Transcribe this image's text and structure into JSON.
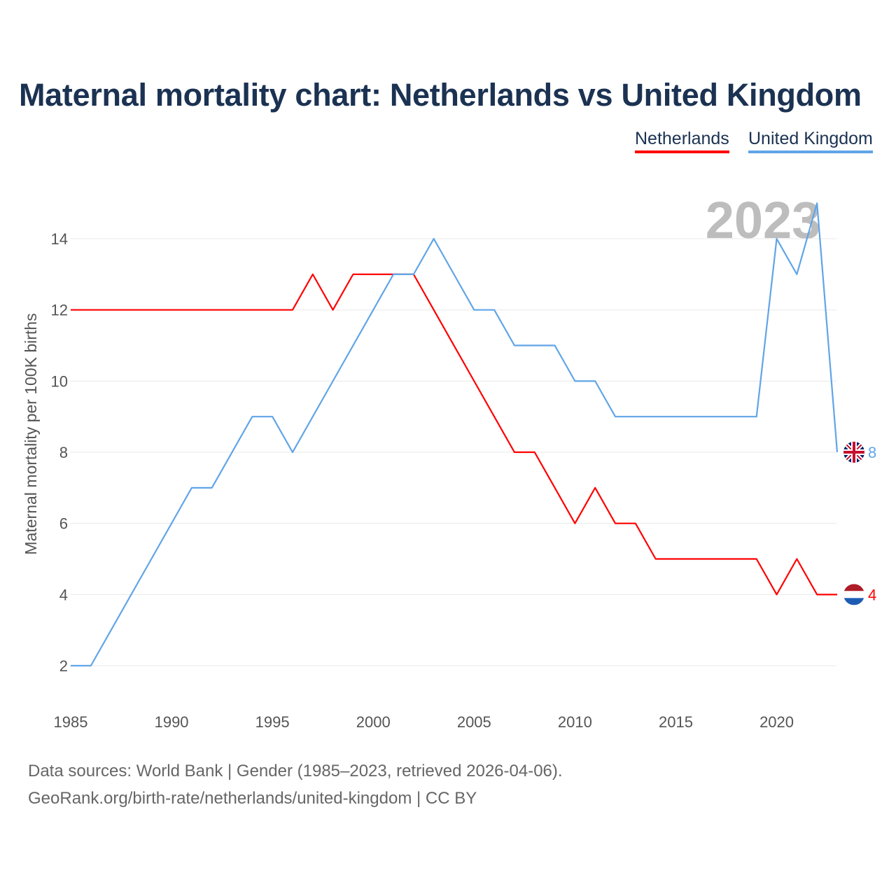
{
  "chart_data": {
    "type": "line",
    "title": "Maternal mortality chart: Netherlands vs United Kingdom",
    "ylabel": "Maternal mortality per 100K births",
    "xlabel": "",
    "xlim": [
      1985,
      2023
    ],
    "ylim": [
      1,
      15.5
    ],
    "x_ticks": [
      1985,
      1990,
      1995,
      2000,
      2005,
      2010,
      2015,
      2020
    ],
    "y_ticks": [
      2,
      4,
      6,
      8,
      10,
      12,
      14
    ],
    "year_watermark": "2023",
    "legend_position": "top-right",
    "x": [
      1985,
      1986,
      1987,
      1988,
      1989,
      1990,
      1991,
      1992,
      1993,
      1994,
      1995,
      1996,
      1997,
      1998,
      1999,
      2000,
      2001,
      2002,
      2003,
      2004,
      2005,
      2006,
      2007,
      2008,
      2009,
      2010,
      2011,
      2012,
      2013,
      2014,
      2015,
      2016,
      2017,
      2018,
      2019,
      2020,
      2021,
      2022,
      2023
    ],
    "series": [
      {
        "name": "Netherlands",
        "color": "#ff0000",
        "end_label": "4",
        "flag": "netherlands-flag",
        "values": [
          12,
          12,
          12,
          12,
          12,
          12,
          12,
          12,
          12,
          12,
          12,
          12,
          13,
          12,
          13,
          13,
          13,
          13,
          12,
          11,
          10,
          9,
          8,
          8,
          7,
          6,
          7,
          6,
          6,
          5,
          5,
          5,
          5,
          5,
          5,
          4,
          5,
          4,
          4
        ]
      },
      {
        "name": "United Kingdom",
        "color": "#60a5e8",
        "end_label": "8",
        "flag": "uk-flag",
        "values": [
          2,
          2,
          3,
          4,
          5,
          6,
          7,
          7,
          8,
          9,
          9,
          8,
          9,
          10,
          11,
          12,
          13,
          13,
          14,
          13,
          12,
          12,
          11,
          11,
          11,
          10,
          10,
          9,
          9,
          9,
          9,
          9,
          9,
          9,
          9,
          14,
          13,
          15,
          8
        ]
      }
    ]
  },
  "footer": {
    "line1": "Data sources: World Bank | Gender (1985–2023, retrieved 2026-04-06).",
    "line2": "GeoRank.org/birth-rate/netherlands/united-kingdom | CC BY"
  }
}
